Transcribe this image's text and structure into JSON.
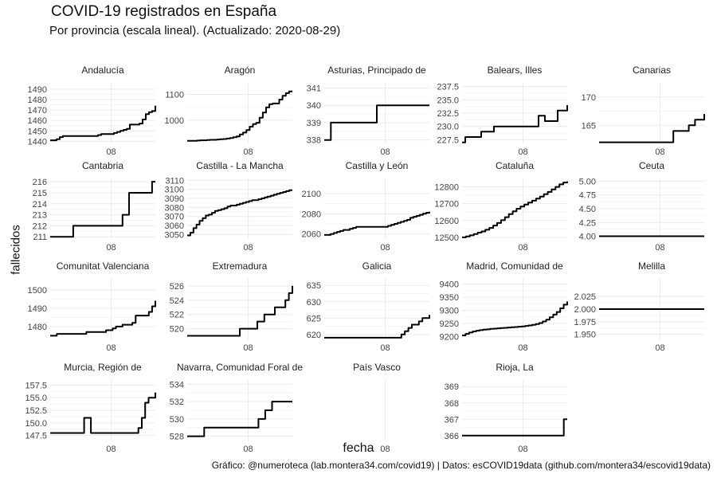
{
  "title": "COVID-19 registrados en España",
  "subtitle": "Por provincia (escala lineal). (Actualizado: 2020-08-29)",
  "caption": "Gráfico: @numeroteca (lab.montera34.com/covid19) | Datos: esCOVID19data (github.com/montera34/escovid19data)",
  "chart_data": {
    "type": "line",
    "xlabel": "fecha",
    "ylabel": "fallecidos",
    "x_tick_label": "08",
    "grid": true,
    "facets": [
      {
        "name": "Andalucía",
        "ylim": [
          1438,
          1496
        ],
        "yticks": [
          1440,
          1450,
          1460,
          1470,
          1480,
          1490
        ],
        "ytick_labels": [
          "1440",
          "1450",
          "1460",
          "1470",
          "1480",
          "1490"
        ],
        "values": [
          1441,
          1441,
          1442,
          1444,
          1445,
          1445,
          1445,
          1445,
          1445,
          1445,
          1445,
          1445,
          1445,
          1445,
          1445,
          1446,
          1447,
          1447,
          1447,
          1447,
          1448,
          1449,
          1450,
          1451,
          1452,
          1456,
          1456,
          1456,
          1457,
          1461,
          1466,
          1468,
          1469,
          1474
        ]
      },
      {
        "name": "Aragón",
        "ylim": [
          910,
          1145
        ],
        "yticks": [
          1000,
          1100
        ],
        "ytick_labels": [
          "1000",
          "1100"
        ],
        "values": [
          920,
          920,
          920,
          921,
          922,
          922,
          923,
          924,
          924,
          925,
          926,
          927,
          929,
          931,
          934,
          937,
          945,
          952,
          962,
          975,
          985,
          990,
          1010,
          1030,
          1050,
          1062,
          1065,
          1065,
          1080,
          1095,
          1105,
          1112,
          1112
        ]
      },
      {
        "name": "Asturias, Principado de",
        "ylim": [
          337.8,
          341.3
        ],
        "yticks": [
          338,
          339,
          340,
          341
        ],
        "ytick_labels": [
          "338",
          "339",
          "340",
          "341"
        ],
        "values": [
          338,
          338,
          339,
          339,
          339,
          339,
          339,
          339,
          339,
          339,
          339,
          339,
          339,
          339,
          339,
          339,
          340,
          340,
          340,
          340,
          340,
          340,
          340,
          340,
          340,
          340,
          340,
          340,
          340,
          340,
          340,
          340,
          340
        ]
      },
      {
        "name": "Balears, Illes",
        "ylim": [
          226.8,
          238.2
        ],
        "yticks": [
          227.5,
          230.0,
          232.5,
          235.0,
          237.5
        ],
        "ytick_labels": [
          "227.5",
          "230.0",
          "232.5",
          "235.0",
          "237.5"
        ],
        "values": [
          227,
          228,
          228,
          228,
          228,
          228,
          229,
          229,
          229,
          229,
          230,
          230,
          230,
          230,
          230,
          230,
          230,
          230,
          230,
          230,
          230,
          230,
          230,
          230,
          232,
          232,
          231,
          231,
          231,
          231,
          233,
          233,
          233,
          234
        ]
      },
      {
        "name": "Canarias",
        "ylim": [
          161.8,
          172.5
        ],
        "yticks": [
          165,
          170
        ],
        "ytick_labels": [
          "165",
          "170"
        ],
        "values": [
          162,
          162,
          162,
          162,
          162,
          162,
          162,
          162,
          162,
          162,
          162,
          162,
          162,
          162,
          162,
          162,
          162,
          162,
          162,
          162,
          162,
          162,
          162,
          162,
          164,
          164,
          164,
          164,
          164,
          165,
          165,
          166,
          166,
          166,
          167
        ]
      },
      {
        "name": "Cantabria",
        "ylim": [
          210.8,
          216.3
        ],
        "yticks": [
          211,
          212,
          213,
          214,
          215,
          216
        ],
        "ytick_labels": [
          "211",
          "212",
          "213",
          "214",
          "215",
          "216"
        ],
        "values": [
          211,
          211,
          211,
          211,
          211,
          211,
          211,
          212,
          212,
          212,
          212,
          212,
          212,
          212,
          212,
          212,
          212,
          212,
          212,
          212,
          212,
          212,
          213,
          213,
          215,
          215,
          215,
          215,
          215,
          215,
          215,
          216,
          216
        ]
      },
      {
        "name": "Castilla - La Mancha",
        "ylim": [
          3045,
          3112
        ],
        "yticks": [
          3050,
          3060,
          3070,
          3080,
          3090,
          3100,
          3110
        ],
        "ytick_labels": [
          "3050",
          "3060",
          "3070",
          "3080",
          "3090",
          "3100",
          "3110"
        ],
        "values": [
          3049,
          3052,
          3057,
          3061,
          3065,
          3068,
          3071,
          3072,
          3074,
          3076,
          3077,
          3078,
          3079,
          3081,
          3082,
          3082,
          3083,
          3084,
          3085,
          3086,
          3087,
          3088,
          3088,
          3089,
          3090,
          3091,
          3092,
          3093,
          3094,
          3095,
          3096,
          3097,
          3098,
          3099,
          3099
        ]
      },
      {
        "name": "Castilla y León",
        "ylim": [
          2055,
          2115
        ],
        "yticks": [
          2060,
          2080,
          2100
        ],
        "ytick_labels": [
          "2060",
          "2080",
          "2100"
        ],
        "values": [
          2059,
          2059,
          2060,
          2061,
          2062,
          2063,
          2064,
          2064,
          2065,
          2066,
          2067,
          2067,
          2067,
          2067,
          2067,
          2067,
          2067,
          2067,
          2067,
          2067,
          2068,
          2069,
          2070,
          2071,
          2072,
          2073,
          2074,
          2076,
          2077,
          2078,
          2079,
          2080,
          2081,
          2082
        ]
      },
      {
        "name": "Cataluña",
        "ylim": [
          12490,
          12850
        ],
        "yticks": [
          12500,
          12600,
          12700,
          12800
        ],
        "ytick_labels": [
          "12500",
          "12600",
          "12700",
          "12800"
        ],
        "values": [
          12500,
          12505,
          12512,
          12520,
          12528,
          12535,
          12545,
          12556,
          12570,
          12585,
          12602,
          12620,
          12638,
          12655,
          12670,
          12683,
          12695,
          12707,
          12718,
          12730,
          12742,
          12756,
          12770,
          12785,
          12800,
          12815,
          12826,
          12832
        ]
      },
      {
        "name": "Ceuta",
        "ylim": [
          3.95,
          5.05
        ],
        "yticks": [
          4.0,
          4.25,
          4.5,
          4.75,
          5.0
        ],
        "ytick_labels": [
          "4.00",
          "4.25",
          "4.50",
          "4.75",
          "5.00"
        ],
        "values": [
          4,
          4,
          4,
          4,
          4,
          4,
          4,
          4,
          4,
          4,
          4,
          4,
          4,
          4,
          4,
          4,
          4,
          4,
          4,
          4,
          4,
          4,
          4,
          4,
          4,
          4,
          4,
          4,
          4,
          4
        ]
      },
      {
        "name": "Comunitat Valenciana",
        "ylim": [
          1473,
          1506
        ],
        "yticks": [
          1480,
          1490,
          1500
        ],
        "ytick_labels": [
          "1480",
          "1490",
          "1500"
        ],
        "values": [
          1475,
          1475,
          1476,
          1476,
          1476,
          1476,
          1476,
          1476,
          1476,
          1476,
          1476,
          1477,
          1477,
          1477,
          1477,
          1477,
          1477,
          1478,
          1478,
          1479,
          1480,
          1480,
          1481,
          1481,
          1481,
          1482,
          1486,
          1486,
          1486,
          1486,
          1488,
          1491,
          1494
        ]
      },
      {
        "name": "Extremadura",
        "ylim": [
          518.5,
          527
        ],
        "yticks": [
          520,
          522,
          524,
          526
        ],
        "ytick_labels": [
          "520",
          "522",
          "524",
          "526"
        ],
        "values": [
          519,
          519,
          519,
          519,
          519,
          519,
          519,
          519,
          519,
          519,
          519,
          519,
          519,
          519,
          519,
          520,
          520,
          520,
          520,
          520,
          521,
          521,
          522,
          522,
          522,
          523,
          523,
          523,
          524,
          525,
          526
        ]
      },
      {
        "name": "Galicia",
        "ylim": [
          618.5,
          637
        ],
        "yticks": [
          620,
          625,
          630,
          635
        ],
        "ytick_labels": [
          "620",
          "625",
          "630",
          "635"
        ],
        "values": [
          619,
          619,
          619,
          619,
          619,
          619,
          619,
          619,
          619,
          619,
          619,
          619,
          619,
          619,
          619,
          619,
          619,
          619,
          619,
          619,
          619,
          619,
          620,
          621,
          622,
          623,
          623,
          624,
          625,
          625,
          626
        ]
      },
      {
        "name": "Madrid, Comunidad de",
        "ylim": [
          9190,
          9420
        ],
        "yticks": [
          9200,
          9250,
          9300,
          9350,
          9400
        ],
        "ytick_labels": [
          "9200",
          "9250",
          "9300",
          "9350",
          "9400"
        ],
        "values": [
          9205,
          9211,
          9216,
          9220,
          9223,
          9225,
          9227,
          9228,
          9230,
          9231,
          9232,
          9233,
          9234,
          9235,
          9236,
          9237,
          9238,
          9239,
          9241,
          9243,
          9245,
          9248,
          9252,
          9258,
          9265,
          9274,
          9284,
          9294,
          9308,
          9322,
          9334
        ]
      },
      {
        "name": "Melilla",
        "ylim": [
          1.94,
          2.06
        ],
        "yticks": [
          1.95,
          1.975,
          2.0,
          2.025
        ],
        "ytick_labels": [
          "1.950",
          "1.975",
          "2.000",
          "2.025"
        ],
        "values": [
          2,
          2,
          2,
          2,
          2,
          2,
          2,
          2,
          2,
          2,
          2,
          2,
          2,
          2,
          2,
          2,
          2,
          2,
          2,
          2,
          2,
          2,
          2,
          2,
          2,
          2,
          2,
          2,
          2,
          2
        ]
      },
      {
        "name": "Murcia, Región de",
        "ylim": [
          146.5,
          158.5
        ],
        "yticks": [
          147.5,
          150.0,
          152.5,
          155.0,
          157.5
        ],
        "ytick_labels": [
          "147.5",
          "150.0",
          "152.5",
          "155.0",
          "157.5"
        ],
        "values": [
          148,
          148,
          148,
          148,
          148,
          148,
          148,
          148,
          148,
          148,
          151,
          151,
          148,
          148,
          148,
          148,
          148,
          148,
          148,
          148,
          148,
          148,
          148,
          148,
          148,
          148,
          149,
          151,
          154,
          155,
          155,
          156
        ]
      },
      {
        "name": "Navarra, Comunidad Foral de",
        "ylim": [
          527.5,
          534.5
        ],
        "yticks": [
          528,
          530,
          532,
          534
        ],
        "ytick_labels": [
          "528",
          "530",
          "532",
          "534"
        ],
        "values": [
          528,
          528,
          528,
          528,
          528,
          529,
          529,
          529,
          529,
          529,
          529,
          529,
          529,
          529,
          529,
          529,
          529,
          529,
          529,
          529,
          529,
          530,
          530,
          531,
          531,
          532,
          532,
          532,
          532,
          532,
          532,
          532
        ]
      },
      {
        "name": "País Vasco",
        "ylim": [
          0,
          1
        ],
        "yticks": [],
        "ytick_labels": [],
        "values": []
      },
      {
        "name": "Rioja, La",
        "ylim": [
          365.7,
          369.4
        ],
        "yticks": [
          366,
          367,
          368,
          369
        ],
        "ytick_labels": [
          "366",
          "367",
          "368",
          "369"
        ],
        "values": [
          366,
          366,
          366,
          366,
          366,
          366,
          366,
          366,
          366,
          366,
          366,
          366,
          366,
          366,
          366,
          366,
          366,
          366,
          366,
          366,
          366,
          366,
          366,
          366,
          366,
          366,
          366,
          366,
          366,
          366,
          367,
          367
        ]
      }
    ]
  }
}
